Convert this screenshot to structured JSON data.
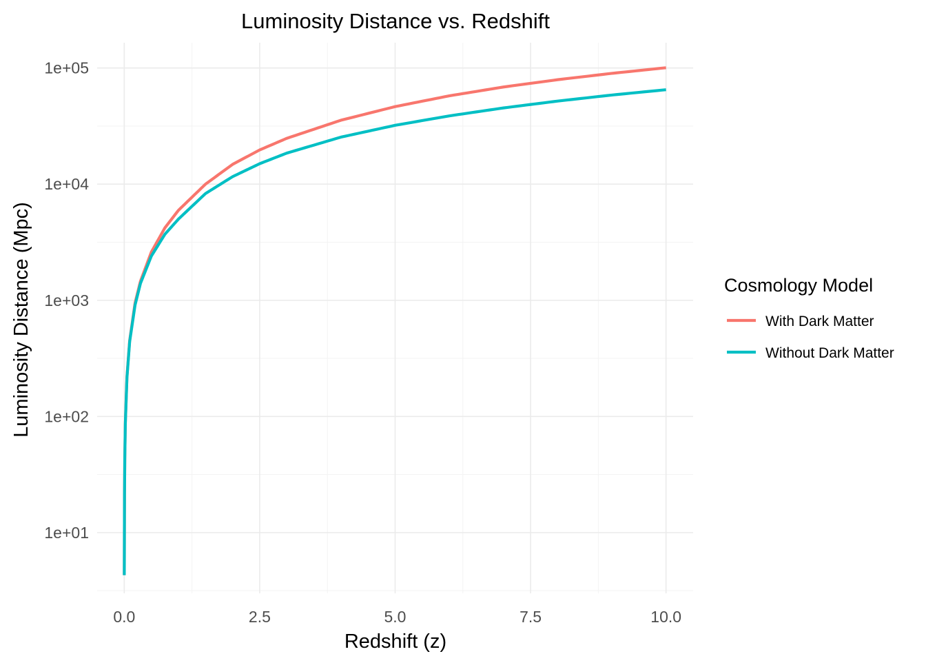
{
  "chart_data": {
    "type": "line",
    "title": "Luminosity Distance vs. Redshift",
    "xlabel": "Redshift (z)",
    "ylabel": "Luminosity Distance (Mpc)",
    "x_scale": "linear",
    "y_scale": "log10",
    "xlim": [
      -0.5,
      10.5
    ],
    "ylim": [
      3,
      165000
    ],
    "x_ticks": [
      0.0,
      2.5,
      5.0,
      7.5,
      10.0
    ],
    "x_tick_labels": [
      "0.0",
      "2.5",
      "5.0",
      "7.5",
      "10.0"
    ],
    "y_ticks": [
      10,
      100,
      1000,
      10000,
      100000
    ],
    "y_tick_labels": [
      "1e+01",
      "1e+02",
      "1e+03",
      "1e+04",
      "1e+05"
    ],
    "grid": true,
    "legend": {
      "title": "Cosmology Model",
      "position": "right"
    },
    "series": [
      {
        "name": "With Dark Matter",
        "color": "#F8766D",
        "x": [
          0.001,
          0.005,
          0.01,
          0.02,
          0.05,
          0.1,
          0.2,
          0.3,
          0.5,
          0.75,
          1.0,
          1.5,
          2.0,
          2.5,
          3.0,
          4.0,
          5.0,
          6.0,
          7.0,
          8.0,
          9.0,
          10.0
        ],
        "y": [
          4.3,
          21.5,
          43,
          87,
          220,
          450,
          950,
          1460,
          2600,
          4200,
          5950,
          10000,
          14800,
          19700,
          24800,
          35500,
          46500,
          57600,
          68600,
          79300,
          89900,
          100500
        ]
      },
      {
        "name": "Without Dark Matter",
        "color": "#00BFC4",
        "x": [
          0.001,
          0.005,
          0.01,
          0.02,
          0.05,
          0.1,
          0.2,
          0.3,
          0.5,
          0.75,
          1.0,
          1.5,
          2.0,
          2.5,
          3.0,
          4.0,
          5.0,
          6.0,
          7.0,
          8.0,
          9.0,
          10.0
        ],
        "y": [
          4.3,
          21.3,
          42.5,
          86,
          215,
          440,
          910,
          1400,
          2400,
          3700,
          5000,
          8300,
          11600,
          15000,
          18500,
          25400,
          32100,
          38700,
          45300,
          51900,
          58500,
          65000
        ]
      }
    ]
  }
}
